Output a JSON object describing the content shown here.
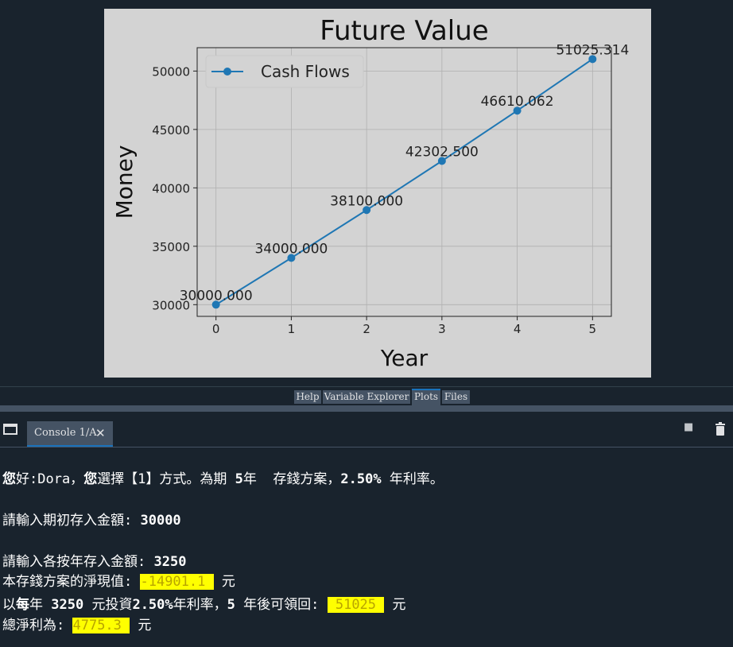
{
  "plots_pane": {
    "chart_data": {
      "type": "line",
      "title": "Future Value",
      "xlabel": "Year",
      "ylabel": "Money",
      "x": [
        0,
        1,
        2,
        3,
        4,
        5
      ],
      "series": [
        {
          "name": "Cash Flows",
          "values": [
            30000.0,
            34000.0,
            38100.0,
            42302.5,
            46610.062,
            51025.314
          ]
        }
      ],
      "point_labels": [
        "30000.000",
        "34000.000",
        "38100.000",
        "42302.500",
        "46610.062",
        "51025.314"
      ],
      "x_ticks": [
        "0",
        "1",
        "2",
        "3",
        "4",
        "5"
      ],
      "y_ticks": [
        "30000",
        "35000",
        "40000",
        "45000",
        "50000"
      ],
      "xlim": [
        -0.25,
        5.25
      ],
      "ylim": [
        29000,
        52000
      ],
      "grid": true,
      "legend_placement": "top-left",
      "line_color": "#1f77b4",
      "figure_background": "#d3d3d3"
    }
  },
  "pane_tabs": [
    "Help",
    "Variable Explorer",
    "Plots",
    "Files"
  ],
  "active_pane_tab": "Plots",
  "console": {
    "tab_label": "Console 1/A",
    "close_glyph": "✕",
    "stop_glyph": "■",
    "lines": {
      "greeting": {
        "p1": "您",
        "p2": "好:Dora，",
        "p3": "您",
        "p4": "選擇【1】方式。為期 ",
        "p5": "5",
        "p6": "年  存錢方案，",
        "p7": "2.50%",
        "p8": " 年利率。"
      },
      "initial_prompt": "請輸入期初存入金額: ",
      "initial_value": "30000",
      "annual_prompt": "請輸入各按年存入金額: ",
      "annual_value": "3250",
      "npv_label": "本存錢方案的淨現值: ",
      "npv_value": "-14901.1 ",
      "npv_unit": " 元",
      "fv_p1": "以",
      "fv_p2": "每",
      "fv_p3": "年 ",
      "fv_p4": "3250",
      "fv_p5": " 元投資",
      "fv_p6": "2.50%",
      "fv_p7": "年利率，",
      "fv_p8": "5",
      "fv_p9": " 年後可領回: ",
      "fv_value": " 51025 ",
      "fv_unit": " 元",
      "profit_label": "總淨利為: ",
      "profit_value": "4775.3 ",
      "profit_unit": " 元"
    }
  }
}
